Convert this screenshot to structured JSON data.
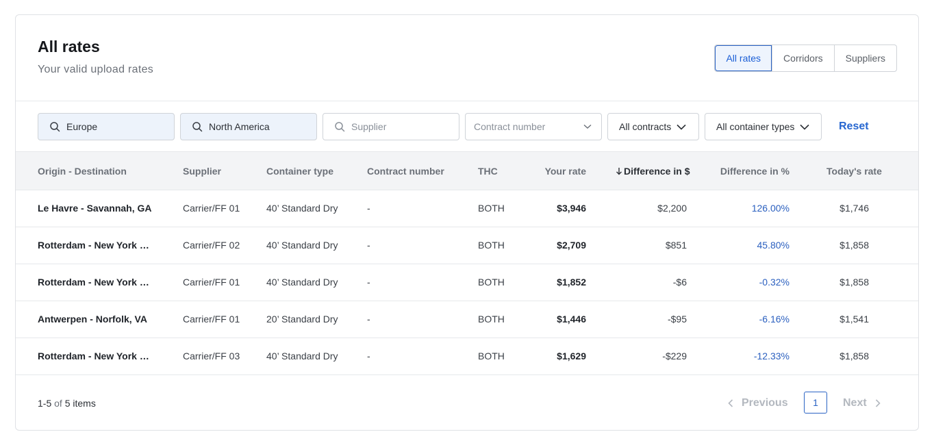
{
  "header": {
    "title": "All rates",
    "subtitle": "Your valid upload rates",
    "tabs": [
      "All rates",
      "Corridors",
      "Suppliers"
    ]
  },
  "filters": {
    "origin": "Europe",
    "destination": "North America",
    "supplier_placeholder": "Supplier",
    "contract_placeholder": "Contract number",
    "contracts": "All contracts",
    "container_types": "All container types",
    "reset": "Reset"
  },
  "table": {
    "columns": {
      "origin_destination": "Origin - Destination",
      "supplier": "Supplier",
      "container_type": "Container type",
      "contract_number": "Contract number",
      "thc": "THC",
      "your_rate": "Your rate",
      "diff_usd": "Difference in $",
      "diff_pct": "Difference in %",
      "todays_rate": "Today's rate"
    },
    "rows": [
      {
        "od": "Le Havre - Savannah, GA",
        "supplier": "Carrier/FF 01",
        "container": "40’ Standard Dry",
        "contract": "-",
        "thc": "BOTH",
        "rate": "$3,946",
        "diff_usd": "$2,200",
        "diff_pct": "126.00%",
        "today": "$1,746"
      },
      {
        "od": "Rotterdam - New York City, NY",
        "supplier": "Carrier/FF 02",
        "container": "40’ Standard Dry",
        "contract": "-",
        "thc": "BOTH",
        "rate": "$2,709",
        "diff_usd": "$851",
        "diff_pct": "45.80%",
        "today": "$1,858"
      },
      {
        "od": "Rotterdam - New York City, NY",
        "supplier": "Carrier/FF 01",
        "container": "40’ Standard Dry",
        "contract": "-",
        "thc": "BOTH",
        "rate": "$1,852",
        "diff_usd": "-$6",
        "diff_pct": "-0.32%",
        "today": "$1,858"
      },
      {
        "od": "Antwerpen - Norfolk, VA",
        "supplier": "Carrier/FF 01",
        "container": "20’ Standard Dry",
        "contract": "-",
        "thc": "BOTH",
        "rate": "$1,446",
        "diff_usd": "-$95",
        "diff_pct": "-6.16%",
        "today": "$1,541"
      },
      {
        "od": "Rotterdam - New York City, NY",
        "supplier": "Carrier/FF 03",
        "container": "40’ Standard Dry",
        "contract": "-",
        "thc": "BOTH",
        "rate": "$1,629",
        "diff_usd": "-$229",
        "diff_pct": "-12.33%",
        "today": "$1,858"
      }
    ]
  },
  "footer": {
    "range": "1-5",
    "of": "of",
    "total": "5 items",
    "previous": "Previous",
    "page": "1",
    "next": "Next"
  }
}
